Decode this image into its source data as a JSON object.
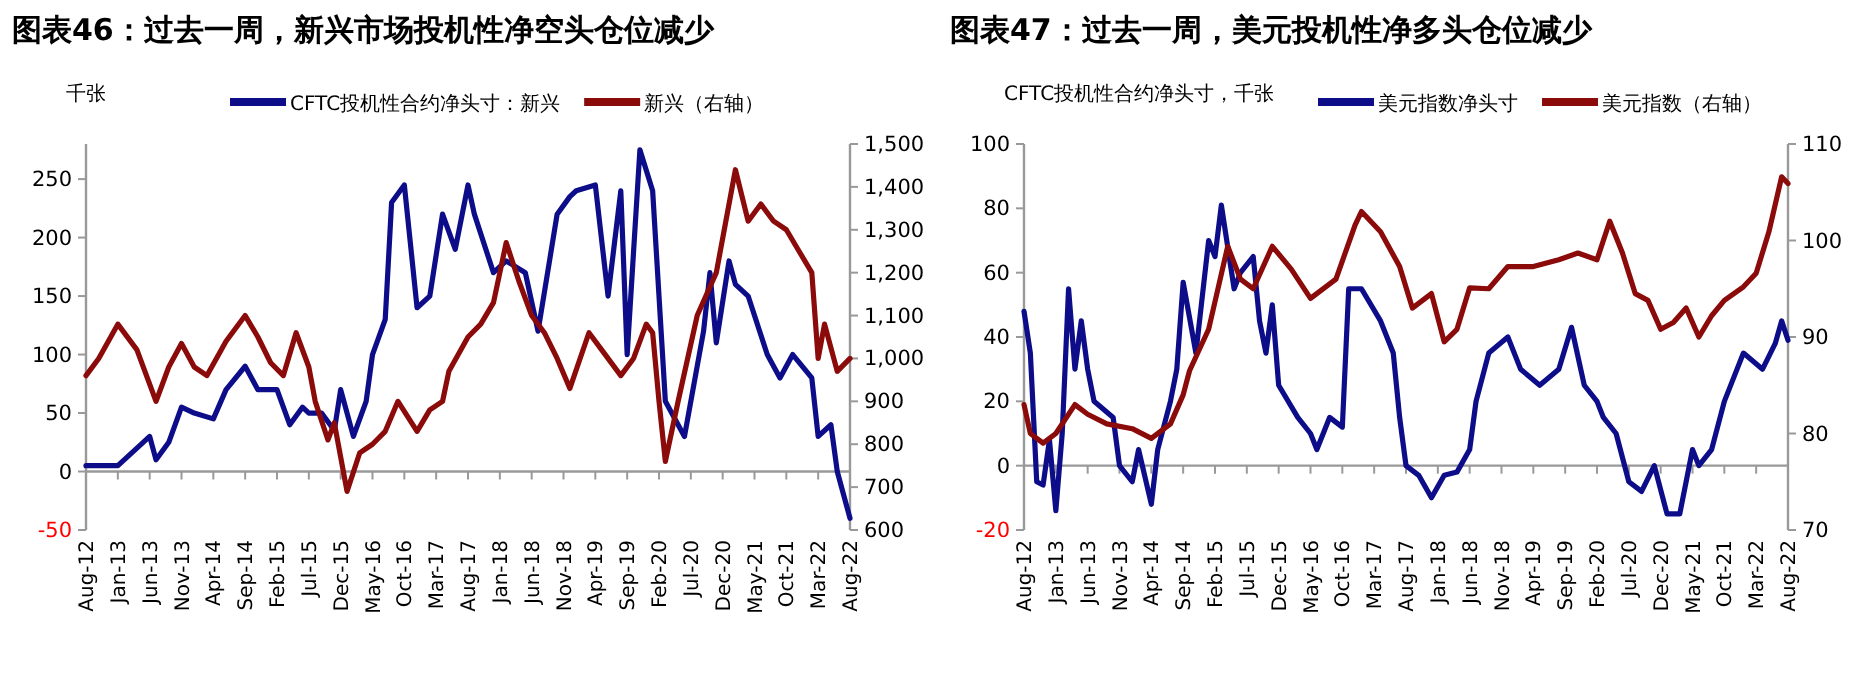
{
  "chart_data": [
    {
      "type": "line",
      "title": "**图表46：过去一周，新兴市场投机性净空头仓位减少**",
      "ylabel": "千张",
      "legend": "top",
      "ylim": [
        -50,
        280
      ],
      "yticks": [
        -50,
        0,
        50,
        100,
        150,
        200,
        250
      ],
      "y2lim": [
        600,
        1500
      ],
      "y2ticks": [
        600,
        700,
        800,
        900,
        {
          "value": 1000,
          "label": "1,000"
        },
        {
          "value": 1100,
          "label": "1,100"
        },
        {
          "value": 1200,
          "label": "1,200"
        },
        {
          "value": 1300,
          "label": "1,300"
        },
        {
          "value": 1400,
          "label": "1,400"
        },
        {
          "value": 1500,
          "label": "1,500"
        }
      ],
      "xlim": [
        "2012-08",
        "2022-08"
      ],
      "xticks": [
        {
          "value": "2012-08",
          "label": "Aug-12"
        },
        {
          "value": "2013-01",
          "label": "Jan-13"
        },
        {
          "value": "2013-06",
          "label": "Jun-13"
        },
        {
          "value": "2013-11",
          "label": "Nov-13"
        },
        {
          "value": "2014-04",
          "label": "Apr-14"
        },
        {
          "value": "2014-09",
          "label": "Sep-14"
        },
        {
          "value": "2015-02",
          "label": "Feb-15"
        },
        {
          "value": "2015-07",
          "label": "Jul-15"
        },
        {
          "value": "2015-12",
          "label": "Dec-15"
        },
        {
          "value": "2016-05",
          "label": "May-16"
        },
        {
          "value": "2016-10",
          "label": "Oct-16"
        },
        {
          "value": "2017-03",
          "label": "Mar-17"
        },
        {
          "value": "2017-08",
          "label": "Aug-17"
        },
        {
          "value": "2018-01",
          "label": "Jan-18"
        },
        {
          "value": "2018-06",
          "label": "Jun-18"
        },
        {
          "value": "2018-11",
          "label": "Nov-18"
        },
        {
          "value": "2019-04",
          "label": "Apr-19"
        },
        {
          "value": "2019-09",
          "label": "Sep-19"
        },
        {
          "value": "2020-02",
          "label": "Feb-20"
        },
        {
          "value": "2020-07",
          "label": "Jul-20"
        },
        {
          "value": "2020-12",
          "label": "Dec-20"
        },
        {
          "value": "2021-05",
          "label": "May-21"
        },
        {
          "value": "2021-10",
          "label": "Oct-21"
        },
        {
          "value": "2022-03",
          "label": "Mar-22"
        },
        {
          "value": "2022-08",
          "label": "Aug-22"
        }
      ],
      "series": [
        {
          "name": "CFTC投机性合约净头寸：新兴",
          "color": "#0d0d8a",
          "x": [
            "2012-08",
            "2013-01",
            "2013-04",
            "2013-06",
            "2013-07",
            "2013-09",
            "2013-11",
            "2014-01",
            "2014-04",
            "2014-06",
            "2014-09",
            "2014-11",
            "2015-02",
            "2015-04",
            "2015-06",
            "2015-07",
            "2015-09",
            "2015-11",
            "2015-12",
            "2016-02",
            "2016-04",
            "2016-05",
            "2016-07",
            "2016-08",
            "2016-10",
            "2016-12",
            "2017-02",
            "2017-04",
            "2017-06",
            "2017-08",
            "2017-09",
            "2017-12",
            "2018-02",
            "2018-05",
            "2018-07",
            "2018-10",
            "2018-12",
            "2019-01",
            "2019-04",
            "2019-06",
            "2019-08",
            "2019-09",
            "2019-11",
            "2020-01",
            "2020-02",
            "2020-03",
            "2020-06",
            "2020-09",
            "2020-10",
            "2020-11",
            "2021-01",
            "2021-02",
            "2021-04",
            "2021-07",
            "2021-09",
            "2021-11",
            "2022-02",
            "2022-03",
            "2022-05",
            "2022-06",
            "2022-08"
          ],
          "values": [
            5,
            5,
            20,
            30,
            10,
            25,
            55,
            50,
            45,
            70,
            90,
            70,
            70,
            40,
            55,
            50,
            50,
            35,
            70,
            30,
            60,
            100,
            130,
            230,
            245,
            140,
            150,
            220,
            190,
            245,
            220,
            170,
            180,
            170,
            120,
            220,
            235,
            240,
            245,
            150,
            240,
            100,
            275,
            240,
            150,
            60,
            30,
            120,
            170,
            110,
            180,
            160,
            150,
            100,
            80,
            100,
            80,
            30,
            40,
            0,
            -40
          ]
        },
        {
          "name": "新兴（右轴）",
          "color": "#8b0a0a",
          "axis": "y2",
          "x": [
            "2012-08",
            "2012-10",
            "2013-01",
            "2013-04",
            "2013-07",
            "2013-09",
            "2013-11",
            "2014-01",
            "2014-03",
            "2014-06",
            "2014-09",
            "2014-11",
            "2015-01",
            "2015-03",
            "2015-05",
            "2015-07",
            "2015-08",
            "2015-10",
            "2015-11",
            "2016-01",
            "2016-03",
            "2016-05",
            "2016-07",
            "2016-09",
            "2016-12",
            "2017-02",
            "2017-04",
            "2017-05",
            "2017-08",
            "2017-10",
            "2017-12",
            "2018-02",
            "2018-04",
            "2018-06",
            "2018-08",
            "2018-10",
            "2018-12",
            "2019-03",
            "2019-05",
            "2019-08",
            "2019-10",
            "2019-12",
            "2020-01",
            "2020-02",
            "2020-03",
            "2020-05",
            "2020-08",
            "2020-11",
            "2021-01",
            "2021-02",
            "2021-04",
            "2021-06",
            "2021-08",
            "2021-10",
            "2021-12",
            "2022-02",
            "2022-03",
            "2022-04",
            "2022-06",
            "2022-08"
          ],
          "values": [
            960,
            1000,
            1080,
            1020,
            900,
            980,
            1035,
            980,
            960,
            1040,
            1100,
            1050,
            990,
            960,
            1060,
            980,
            900,
            810,
            850,
            690,
            780,
            800,
            830,
            900,
            830,
            880,
            900,
            970,
            1050,
            1080,
            1130,
            1270,
            1180,
            1100,
            1060,
            1000,
            930,
            1060,
            1020,
            960,
            1000,
            1080,
            1060,
            900,
            760,
            900,
            1100,
            1200,
            1360,
            1440,
            1320,
            1360,
            1320,
            1300,
            1250,
            1200,
            1000,
            1080,
            970,
            1000
          ]
        }
      ]
    },
    {
      "type": "line",
      "title": "**图表47：过去一周，美元投机性净多头仓位减少**",
      "ylabel": "CFTC投机性合约净头寸，千张",
      "legend": "top",
      "ylim": [
        -20,
        100
      ],
      "yticks": [
        -20,
        0,
        20,
        40,
        60,
        80,
        100
      ],
      "y2lim": [
        70,
        110
      ],
      "y2ticks": [
        70,
        80,
        90,
        100,
        110
      ],
      "xlim": [
        "2012-08",
        "2022-08"
      ],
      "xticks": [
        {
          "value": "2012-08",
          "label": "Aug-12"
        },
        {
          "value": "2013-01",
          "label": "Jan-13"
        },
        {
          "value": "2013-06",
          "label": "Jun-13"
        },
        {
          "value": "2013-11",
          "label": "Nov-13"
        },
        {
          "value": "2014-04",
          "label": "Apr-14"
        },
        {
          "value": "2014-09",
          "label": "Sep-14"
        },
        {
          "value": "2015-02",
          "label": "Feb-15"
        },
        {
          "value": "2015-07",
          "label": "Jul-15"
        },
        {
          "value": "2015-12",
          "label": "Dec-15"
        },
        {
          "value": "2016-05",
          "label": "May-16"
        },
        {
          "value": "2016-10",
          "label": "Oct-16"
        },
        {
          "value": "2017-03",
          "label": "Mar-17"
        },
        {
          "value": "2017-08",
          "label": "Aug-17"
        },
        {
          "value": "2018-01",
          "label": "Jan-18"
        },
        {
          "value": "2018-06",
          "label": "Jun-18"
        },
        {
          "value": "2018-11",
          "label": "Nov-18"
        },
        {
          "value": "2019-04",
          "label": "Apr-19"
        },
        {
          "value": "2019-09",
          "label": "Sep-19"
        },
        {
          "value": "2020-02",
          "label": "Feb-20"
        },
        {
          "value": "2020-07",
          "label": "Jul-20"
        },
        {
          "value": "2020-12",
          "label": "Dec-20"
        },
        {
          "value": "2021-05",
          "label": "May-21"
        },
        {
          "value": "2021-10",
          "label": "Oct-21"
        },
        {
          "value": "2022-03",
          "label": "Mar-22"
        },
        {
          "value": "2022-08",
          "label": "Aug-22"
        }
      ],
      "series": [
        {
          "name": "美元指数净头寸",
          "color": "#0d0d8a",
          "x": [
            "2012-08",
            "2012-09",
            "2012-10",
            "2012-11",
            "2012-12",
            "2013-01",
            "2013-02",
            "2013-03",
            "2013-04",
            "2013-05",
            "2013-06",
            "2013-07",
            "2013-10",
            "2013-11",
            "2014-01",
            "2014-02",
            "2014-04",
            "2014-05",
            "2014-07",
            "2014-08",
            "2014-09",
            "2014-11",
            "2015-01",
            "2015-02",
            "2015-03",
            "2015-05",
            "2015-06",
            "2015-08",
            "2015-09",
            "2015-10",
            "2015-11",
            "2015-12",
            "2016-03",
            "2016-05",
            "2016-06",
            "2016-08",
            "2016-10",
            "2016-11",
            "2017-01",
            "2017-04",
            "2017-06",
            "2017-07",
            "2017-08",
            "2017-10",
            "2017-12",
            "2018-02",
            "2018-04",
            "2018-06",
            "2018-07",
            "2018-09",
            "2018-12",
            "2019-02",
            "2019-05",
            "2019-08",
            "2019-10",
            "2019-12",
            "2020-02",
            "2020-03",
            "2020-05",
            "2020-07",
            "2020-09",
            "2020-11",
            "2021-01",
            "2021-03",
            "2021-05",
            "2021-06",
            "2021-08",
            "2021-10",
            "2021-12",
            "2022-01",
            "2022-04",
            "2022-06",
            "2022-07",
            "2022-08"
          ],
          "values": [
            48,
            35,
            -5,
            -6,
            8,
            -14,
            10,
            55,
            30,
            45,
            30,
            20,
            15,
            0,
            -5,
            5,
            -12,
            5,
            20,
            30,
            57,
            35,
            70,
            65,
            81,
            55,
            60,
            65,
            45,
            35,
            50,
            25,
            15,
            10,
            5,
            15,
            12,
            55,
            55,
            45,
            35,
            15,
            0,
            -3,
            -10,
            -3,
            -2,
            5,
            20,
            35,
            40,
            30,
            25,
            30,
            43,
            25,
            20,
            15,
            10,
            -5,
            -8,
            0,
            -15,
            -15,
            5,
            0,
            5,
            20,
            30,
            35,
            30,
            38,
            45,
            39
          ]
        },
        {
          "name": "美元指数（右轴）",
          "color": "#8b0a0a",
          "axis": "y2",
          "x": [
            "2012-08",
            "2012-09",
            "2012-11",
            "2013-01",
            "2013-04",
            "2013-06",
            "2013-09",
            "2014-01",
            "2014-04",
            "2014-07",
            "2014-09",
            "2014-10",
            "2015-01",
            "2015-04",
            "2015-06",
            "2015-08",
            "2015-11",
            "2016-02",
            "2016-05",
            "2016-09",
            "2016-12",
            "2017-01",
            "2017-04",
            "2017-07",
            "2017-09",
            "2017-12",
            "2018-02",
            "2018-04",
            "2018-06",
            "2018-09",
            "2018-12",
            "2019-04",
            "2019-08",
            "2019-11",
            "2020-02",
            "2020-04",
            "2020-06",
            "2020-08",
            "2020-10",
            "2020-12",
            "2021-02",
            "2021-04",
            "2021-06",
            "2021-08",
            "2021-10",
            "2022-01",
            "2022-03",
            "2022-05",
            "2022-07",
            "2022-08"
          ],
          "values": [
            83,
            80,
            79,
            80,
            83,
            82,
            81,
            80.5,
            79.5,
            81,
            84,
            86.5,
            90.8,
            99.4,
            96,
            95,
            99.4,
            97,
            94,
            96,
            101.6,
            103,
            100.9,
            97.3,
            93,
            94.5,
            89.5,
            90.8,
            95.1,
            95,
            97.3,
            97.3,
            98,
            98.7,
            98,
            102,
            98.7,
            94.5,
            93.8,
            90.8,
            91.5,
            93,
            90,
            92.2,
            93.8,
            95.2,
            96.6,
            100.9,
            106.6,
            105.9
          ]
        }
      ]
    }
  ]
}
